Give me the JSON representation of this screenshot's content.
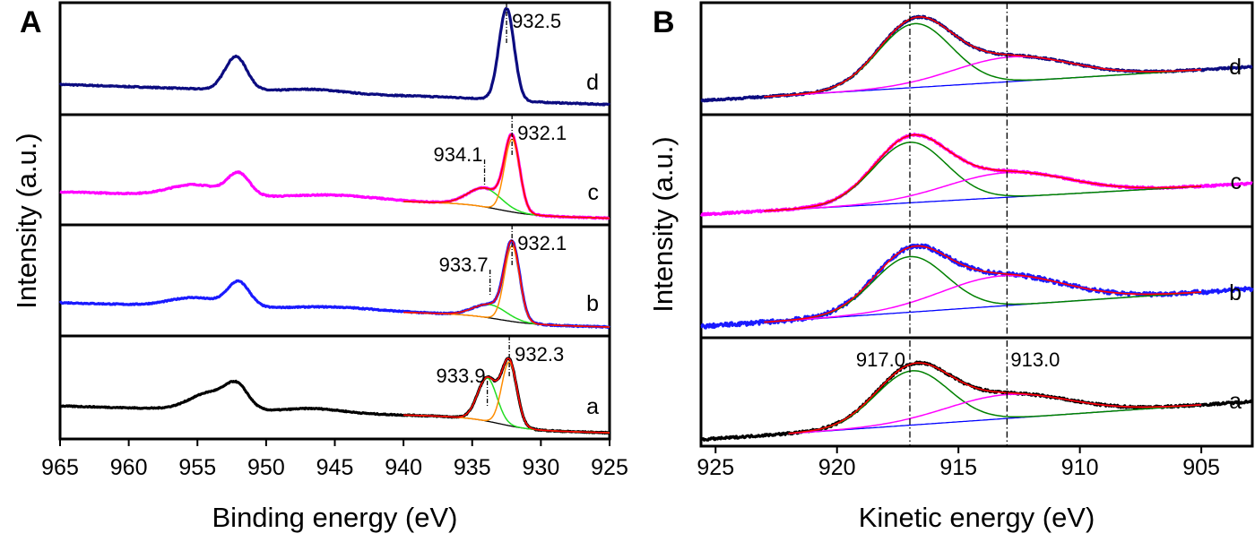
{
  "chart_data": [
    {
      "panel": "A",
      "type": "line",
      "xlabel": "Binding energy (eV)",
      "ylabel": "Intensity (a.u.)",
      "xlim": [
        965,
        925
      ],
      "xticks": [
        965,
        960,
        955,
        950,
        945,
        940,
        935,
        930,
        925
      ],
      "yticks": "none",
      "grid": false,
      "colors": {
        "fit_main": "#ff8c00",
        "fit_secondary": "#22dd22",
        "baseline": "#000000",
        "envelope": "#ff0000"
      },
      "subplots": [
        {
          "label": "d",
          "color": "#0c0c80",
          "background": {
            "at925": 0.09,
            "slope": 0.004,
            "step": 0.02
          },
          "peaks": [
            {
              "center": 952.2,
              "height": 0.3,
              "width": 0.8
            },
            {
              "center": 946.5,
              "height": 0.03,
              "width": 2.0
            },
            {
              "center": 932.5,
              "height": 0.82,
              "width": 0.55
            }
          ],
          "fit": null,
          "annotations": [
            {
              "x": 932.5,
              "text": "932.5",
              "side": "right"
            }
          ]
        },
        {
          "label": "c",
          "color": "#ff00ff",
          "background": {
            "at925": 0.06,
            "slope": 0.0035,
            "step": 0.1
          },
          "peaks": [
            {
              "center": 955.2,
              "height": 0.1,
              "width": 1.8
            },
            {
              "center": 952.0,
              "height": 0.2,
              "width": 0.8
            },
            {
              "center": 945.0,
              "height": 0.04,
              "width": 3.0
            }
          ],
          "fit": {
            "range": [
              940,
              925
            ],
            "components": [
              {
                "center": 934.1,
                "height": 0.17,
                "width": 1.2,
                "role": "fit_secondary"
              },
              {
                "center": 932.1,
                "height": 0.66,
                "width": 0.55,
                "role": "fit_main"
              }
            ]
          },
          "annotations": [
            {
              "x": 934.1,
              "text": "934.1",
              "side": "left"
            },
            {
              "x": 932.1,
              "text": "932.1",
              "side": "right"
            }
          ]
        },
        {
          "label": "b",
          "color": "#1a1aff",
          "background": {
            "at925": 0.08,
            "slope": 0.0035,
            "step": 0.08
          },
          "peaks": [
            {
              "center": 955.2,
              "height": 0.08,
              "width": 1.8
            },
            {
              "center": 952.0,
              "height": 0.22,
              "width": 0.8
            },
            {
              "center": 945.0,
              "height": 0.03,
              "width": 3.0
            }
          ],
          "fit": {
            "range": [
              940,
              925
            ],
            "components": [
              {
                "center": 933.7,
                "height": 0.12,
                "width": 1.2,
                "role": "fit_secondary"
              },
              {
                "center": 932.1,
                "height": 0.68,
                "width": 0.55,
                "role": "fit_main"
              }
            ]
          },
          "annotations": [
            {
              "x": 933.7,
              "text": "933.7",
              "side": "left"
            },
            {
              "x": 932.1,
              "text": "932.1",
              "side": "right"
            }
          ]
        },
        {
          "label": "a",
          "color": "#000000",
          "background": {
            "at925": 0.06,
            "slope": 0.0035,
            "step": 0.12
          },
          "peaks": [
            {
              "center": 954.0,
              "height": 0.17,
              "width": 1.5
            },
            {
              "center": 952.1,
              "height": 0.2,
              "width": 0.8
            },
            {
              "center": 946.5,
              "height": 0.04,
              "width": 2.0
            }
          ],
          "fit": {
            "range": [
              940,
              925
            ],
            "components": [
              {
                "center": 933.9,
                "height": 0.42,
                "width": 0.7,
                "role": "fit_secondary"
              },
              {
                "center": 932.3,
                "height": 0.62,
                "width": 0.55,
                "role": "fit_main"
              }
            ]
          },
          "annotations": [
            {
              "x": 933.9,
              "text": "933.9",
              "side": "left"
            },
            {
              "x": 932.3,
              "text": "932.3",
              "side": "right"
            }
          ]
        }
      ]
    },
    {
      "panel": "B",
      "type": "line",
      "xlabel": "Kinetic energy (eV)",
      "ylabel": "Intensity (a.u.)",
      "xlim": [
        925.6,
        902.9
      ],
      "xticks": [
        925,
        920,
        915,
        910,
        905
      ],
      "yticks": "none",
      "grid": false,
      "reference_lines": [
        917.0,
        913.0
      ],
      "colors": {
        "fit_main": "#008000",
        "fit_secondary": "#ff00ff",
        "baseline": "#0000ff",
        "envelope": "#ff0000"
      },
      "subplots": [
        {
          "label": "d",
          "color": "#0c0c80",
          "noise": 0.008,
          "background": {
            "from": [
              923,
              0.16
            ],
            "to": [
              905,
              0.4
            ]
          },
          "fit": {
            "range": [
              923,
              905
            ],
            "components": [
              {
                "center": 916.8,
                "height": 0.57,
                "width": 1.5,
                "role": "fit_main"
              },
              {
                "center": 912.8,
                "height": 0.22,
                "width": 2.4,
                "role": "fit_secondary"
              }
            ]
          },
          "annotations": []
        },
        {
          "label": "c",
          "color": "#ff00ff",
          "noise": 0.008,
          "background": {
            "from": [
              923,
              0.14
            ],
            "to": [
              905,
              0.36
            ]
          },
          "fit": {
            "range": [
              923,
              905
            ],
            "components": [
              {
                "center": 917.0,
                "height": 0.54,
                "width": 1.5,
                "role": "fit_main"
              },
              {
                "center": 913.0,
                "height": 0.22,
                "width": 2.5,
                "role": "fit_secondary"
              }
            ]
          },
          "annotations": []
        },
        {
          "label": "b",
          "color": "#1a1aff",
          "noise": 0.018,
          "background": {
            "from": [
              923,
              0.14
            ],
            "to": [
              905,
              0.41
            ]
          },
          "fit": {
            "range": [
              923,
              905
            ],
            "components": [
              {
                "center": 917.0,
                "height": 0.5,
                "width": 1.5,
                "role": "fit_main"
              },
              {
                "center": 913.2,
                "height": 0.27,
                "width": 2.5,
                "role": "fit_secondary"
              }
            ]
          },
          "annotations": []
        },
        {
          "label": "a",
          "color": "#000000",
          "noise": 0.01,
          "background": {
            "from": [
              923,
              0.1
            ],
            "to": [
              905,
              0.38
            ]
          },
          "fit": {
            "range": [
              922,
              905
            ],
            "components": [
              {
                "center": 916.9,
                "height": 0.5,
                "width": 1.5,
                "role": "fit_main"
              },
              {
                "center": 913.0,
                "height": 0.22,
                "width": 2.5,
                "role": "fit_secondary"
              }
            ]
          },
          "annotations": [
            {
              "x": 917.0,
              "text": "917.0",
              "side": "left"
            },
            {
              "x": 913.0,
              "text": "913.0",
              "side": "right"
            }
          ]
        }
      ]
    }
  ]
}
